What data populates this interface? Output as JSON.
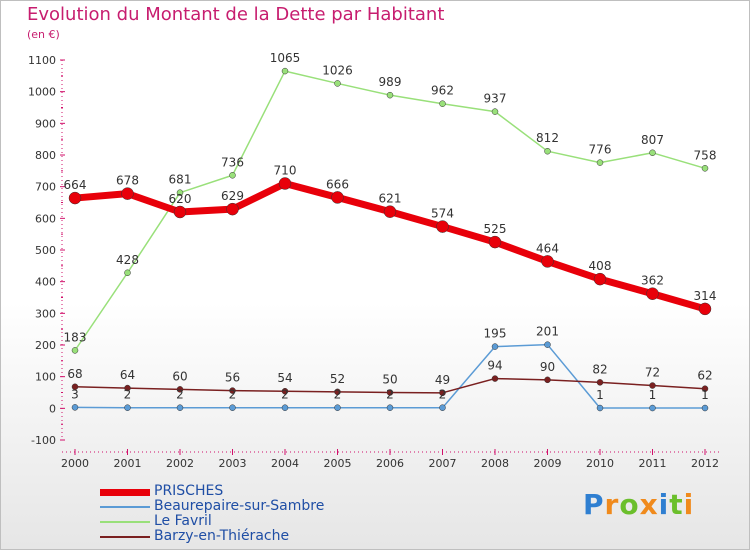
{
  "title": "Evolution du Montant de la Dette par Habitant",
  "subtitle": "(en €)",
  "logo": {
    "text": "Proxiti",
    "letters": [
      "P",
      "r",
      "o",
      "x",
      "i",
      "t",
      "i"
    ],
    "colors": [
      "#2f7fd1",
      "#f08a1c",
      "#6bbf2b",
      "#f08a1c",
      "#2f7fd1",
      "#6bbf2b",
      "#f08a1c"
    ]
  },
  "chart_data": {
    "type": "line",
    "title": "Evolution du Montant de la Dette par Habitant",
    "subtitle": "(en €)",
    "xlabel": "",
    "ylabel": "",
    "x": [
      "2000",
      "2001",
      "2002",
      "2003",
      "2004",
      "2005",
      "2006",
      "2007",
      "2008",
      "2009",
      "2010",
      "2011",
      "2012"
    ],
    "ylim": [
      -100,
      1100
    ],
    "yticks": [
      "-100",
      "0",
      "100",
      "200",
      "300",
      "400",
      "500",
      "600",
      "700",
      "800",
      "900",
      "1000",
      "1100"
    ],
    "grid": false,
    "legend_position": "bottom-left",
    "series": [
      {
        "name": "PRISCHES",
        "color": "#e8000a",
        "values": [
          664,
          678,
          620,
          629,
          710,
          666,
          621,
          574,
          525,
          464,
          408,
          362,
          314
        ]
      },
      {
        "name": "Beaurepaire-sur-Sambre",
        "color": "#5b9bd5",
        "values": [
          3,
          2,
          2,
          2,
          2,
          2,
          2,
          2,
          195,
          201,
          1,
          1,
          1
        ]
      },
      {
        "name": "Le Favril",
        "color": "#99e07a",
        "values": [
          183,
          428,
          681,
          736,
          1065,
          1026,
          989,
          962,
          937,
          812,
          776,
          807,
          758
        ]
      },
      {
        "name": "Barzy-en-Thiérache",
        "color": "#7a2020",
        "values": [
          68,
          64,
          60,
          56,
          54,
          52,
          50,
          49,
          94,
          90,
          82,
          72,
          62
        ]
      }
    ],
    "data_labels": [
      [
        "664",
        "678",
        "620",
        "629",
        "710",
        "666",
        "621",
        "574",
        "525",
        "464",
        "408",
        "362",
        "314"
      ],
      [
        "3",
        "2",
        "2",
        "2",
        "2",
        "2",
        "2",
        "2",
        "195",
        "201",
        "1",
        "1",
        "1"
      ],
      [
        "183",
        "428",
        "681",
        "736",
        "1065",
        "1026",
        "989",
        "962",
        "937",
        "812",
        "776",
        "807",
        "758"
      ],
      [
        "68",
        "64",
        "60",
        "56",
        "54",
        "52",
        "50",
        "49",
        "94",
        "90",
        "82",
        "72",
        "62"
      ]
    ]
  }
}
